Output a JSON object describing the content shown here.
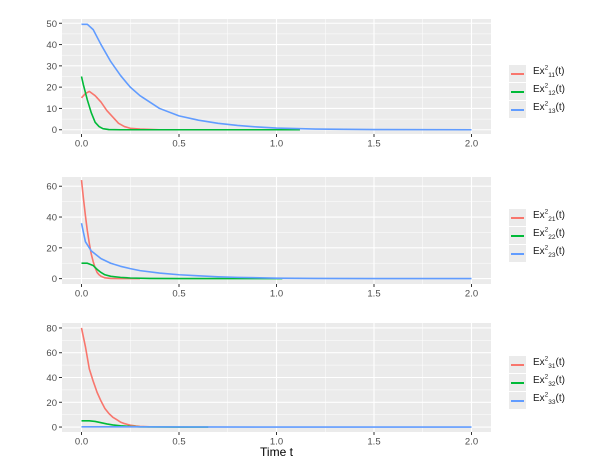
{
  "colors": {
    "red": "#F8766D",
    "green": "#00BA38",
    "blue": "#619CFF",
    "panel_bg": "#EBEBEB",
    "grid": "#FFFFFF"
  },
  "chart_data": [
    {
      "type": "line",
      "xlabel": "Time t",
      "xlim": [
        -0.1,
        2.1
      ],
      "ylim": [
        -2,
        52
      ],
      "x_ticks": [
        "0.0",
        "0.5",
        "1.0",
        "1.5",
        "2.0"
      ],
      "y_ticks": [
        "0",
        "10",
        "20",
        "30",
        "40",
        "50"
      ],
      "legend": [
        {
          "base": "Ex",
          "sup": "2",
          "sub": "11",
          "suffix": "(t)",
          "color": "red"
        },
        {
          "base": "Ex",
          "sup": "2",
          "sub": "12",
          "suffix": "(t)",
          "color": "green"
        },
        {
          "base": "Ex",
          "sup": "2",
          "sub": "13",
          "suffix": "(t)",
          "color": "blue"
        }
      ],
      "series": [
        {
          "color": "red",
          "x": [
            0.0,
            0.02,
            0.04,
            0.07,
            0.1,
            0.13,
            0.16,
            0.19,
            0.22,
            0.25,
            0.3,
            0.4,
            0.6,
            0.9,
            1.12
          ],
          "y": [
            15,
            17,
            18,
            16,
            13,
            9,
            6,
            3,
            1.5,
            0.7,
            0.3,
            0,
            0,
            0,
            0
          ]
        },
        {
          "color": "green",
          "x": [
            0.0,
            0.01,
            0.03,
            0.05,
            0.07,
            0.09,
            0.11,
            0.14,
            0.2,
            0.4,
            0.7,
            1.12
          ],
          "y": [
            25,
            21,
            14,
            8,
            3.5,
            1.5,
            0.5,
            0.1,
            0,
            0,
            0,
            0
          ]
        },
        {
          "color": "blue",
          "x": [
            0.0,
            0.03,
            0.06,
            0.1,
            0.15,
            0.2,
            0.25,
            0.3,
            0.4,
            0.5,
            0.6,
            0.7,
            0.8,
            0.9,
            1.0,
            1.2,
            1.5,
            2.0
          ],
          "y": [
            49.5,
            49.5,
            47,
            40,
            32,
            25.5,
            20,
            16,
            10,
            6.5,
            4.5,
            3,
            2,
            1.3,
            0.8,
            0.3,
            0.1,
            0
          ]
        }
      ]
    },
    {
      "type": "line",
      "xlabel": "",
      "xlim": [
        -0.1,
        2.1
      ],
      "ylim": [
        -3.5,
        66
      ],
      "x_ticks": [
        "0.0",
        "0.5",
        "1.0",
        "1.5",
        "2.0"
      ],
      "y_ticks": [
        "0",
        "20",
        "40",
        "60"
      ],
      "legend": [
        {
          "base": "Ex",
          "sup": "2",
          "sub": "21",
          "suffix": "(t)",
          "color": "red"
        },
        {
          "base": "Ex",
          "sup": "2",
          "sub": "22",
          "suffix": "(t)",
          "color": "green"
        },
        {
          "base": "Ex",
          "sup": "2",
          "sub": "23",
          "suffix": "(t)",
          "color": "blue"
        }
      ],
      "series": [
        {
          "color": "red",
          "x": [
            0.0,
            0.01,
            0.02,
            0.03,
            0.04,
            0.05,
            0.06,
            0.07,
            0.08,
            0.09,
            0.1,
            0.12,
            0.15,
            0.2,
            0.3
          ],
          "y": [
            64,
            52,
            41,
            31,
            23,
            16,
            11,
            7,
            4,
            2.5,
            1.5,
            0.5,
            0.1,
            0,
            0
          ]
        },
        {
          "color": "green",
          "x": [
            0.0,
            0.03,
            0.06,
            0.08,
            0.1,
            0.12,
            0.15,
            0.2,
            0.25,
            0.35,
            0.5,
            0.68,
            1.03
          ],
          "y": [
            10,
            10,
            8.5,
            6,
            4,
            2.5,
            1.5,
            0.8,
            0.4,
            0.1,
            0,
            0,
            0
          ]
        },
        {
          "color": "blue",
          "x": [
            0.0,
            0.02,
            0.05,
            0.1,
            0.15,
            0.2,
            0.25,
            0.3,
            0.4,
            0.5,
            0.6,
            0.7,
            0.8,
            1.0,
            1.2,
            1.5,
            2.0
          ],
          "y": [
            36,
            24,
            18,
            13,
            10,
            8,
            6.5,
            5.2,
            3.6,
            2.5,
            1.8,
            1.2,
            0.8,
            0.3,
            0.1,
            0,
            0
          ]
        }
      ]
    },
    {
      "type": "line",
      "xlabel": "Time t",
      "xlim": [
        -0.1,
        2.1
      ],
      "ylim": [
        -4,
        84
      ],
      "x_ticks": [
        "0.0",
        "0.5",
        "1.0",
        "1.5",
        "2.0"
      ],
      "y_ticks": [
        "0",
        "20",
        "40",
        "60",
        "80"
      ],
      "legend": [
        {
          "base": "Ex",
          "sup": "2",
          "sub": "31",
          "suffix": "(t)",
          "color": "red"
        },
        {
          "base": "Ex",
          "sup": "2",
          "sub": "32",
          "suffix": "(t)",
          "color": "green"
        },
        {
          "base": "Ex",
          "sup": "2",
          "sub": "33",
          "suffix": "(t)",
          "color": "blue"
        }
      ],
      "series": [
        {
          "color": "red",
          "x": [
            0.0,
            0.02,
            0.04,
            0.06,
            0.08,
            0.1,
            0.12,
            0.14,
            0.16,
            0.18,
            0.2,
            0.22,
            0.25,
            0.28,
            0.3,
            0.35
          ],
          "y": [
            80,
            65,
            47,
            37,
            28,
            21,
            15,
            11,
            8,
            6,
            4,
            2.8,
            1.5,
            0.8,
            0.5,
            0.2
          ]
        },
        {
          "color": "green",
          "x": [
            0.0,
            0.04,
            0.07,
            0.1,
            0.13,
            0.16,
            0.2,
            0.25,
            0.3,
            0.4,
            0.5,
            0.65
          ],
          "y": [
            5,
            5,
            4.5,
            3.5,
            2.5,
            1.7,
            1,
            0.5,
            0.2,
            0.05,
            0,
            0
          ]
        },
        {
          "color": "blue",
          "x": [
            0.0,
            0.5,
            1.0,
            1.5,
            2.0
          ],
          "y": [
            0.2,
            0.1,
            0,
            0,
            0
          ]
        }
      ]
    }
  ]
}
